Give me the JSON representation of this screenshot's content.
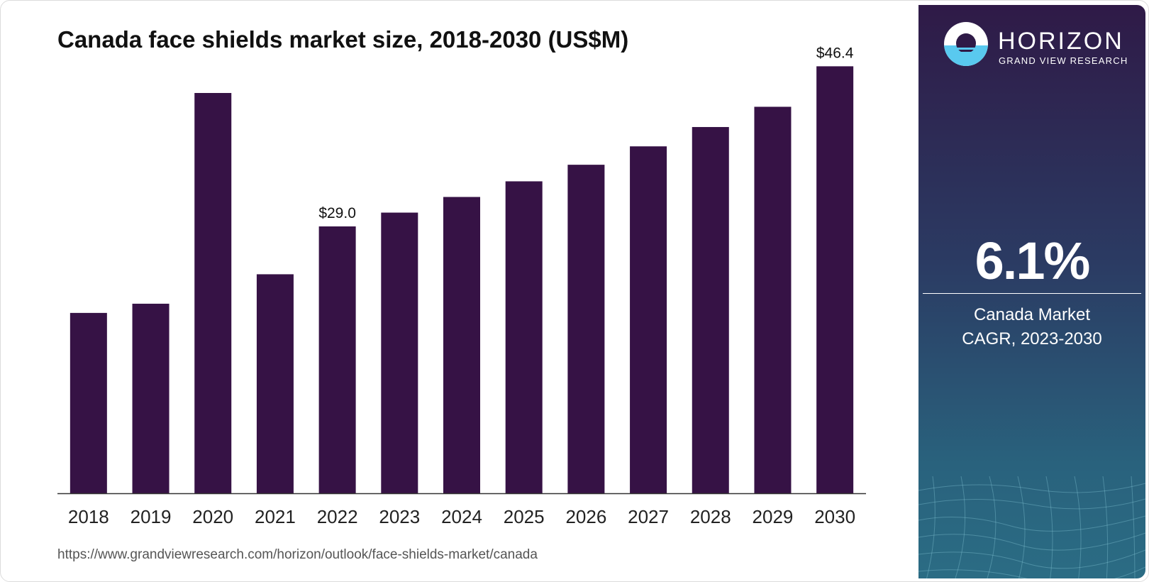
{
  "chart_data": {
    "type": "bar",
    "title": "Canada face shields market size, 2018-2030 (US$M)",
    "categories": [
      "2018",
      "2019",
      "2020",
      "2021",
      "2022",
      "2023",
      "2024",
      "2025",
      "2026",
      "2027",
      "2028",
      "2029",
      "2030"
    ],
    "values": [
      19.6,
      20.6,
      43.5,
      23.8,
      29.0,
      30.5,
      32.2,
      33.9,
      35.7,
      37.7,
      39.8,
      42.0,
      46.4
    ],
    "data_labels": [
      {
        "category": "2022",
        "text": "$29.0"
      },
      {
        "category": "2030",
        "text": "$46.4"
      }
    ],
    "xlabel": "",
    "ylabel": "",
    "ylim": [
      0,
      55
    ],
    "grid": false,
    "bar_color": "#361245"
  },
  "source_url": "https://www.grandviewresearch.com/horizon/outlook/face-shields-market/canada",
  "brand": {
    "name": "HORIZON",
    "subtitle": "GRAND VIEW RESEARCH"
  },
  "stat": {
    "value": "6.1%",
    "label_line1": "Canada Market",
    "label_line2": "CAGR, 2023-2030"
  },
  "colors": {
    "bar": "#361245",
    "axis": "#333333",
    "sidebar_top": "#2f1a47",
    "sidebar_bottom": "#2b6c84",
    "logo_accent": "#59c9ef"
  },
  "icons": {
    "logo": "horizon-sun-logo-icon"
  }
}
